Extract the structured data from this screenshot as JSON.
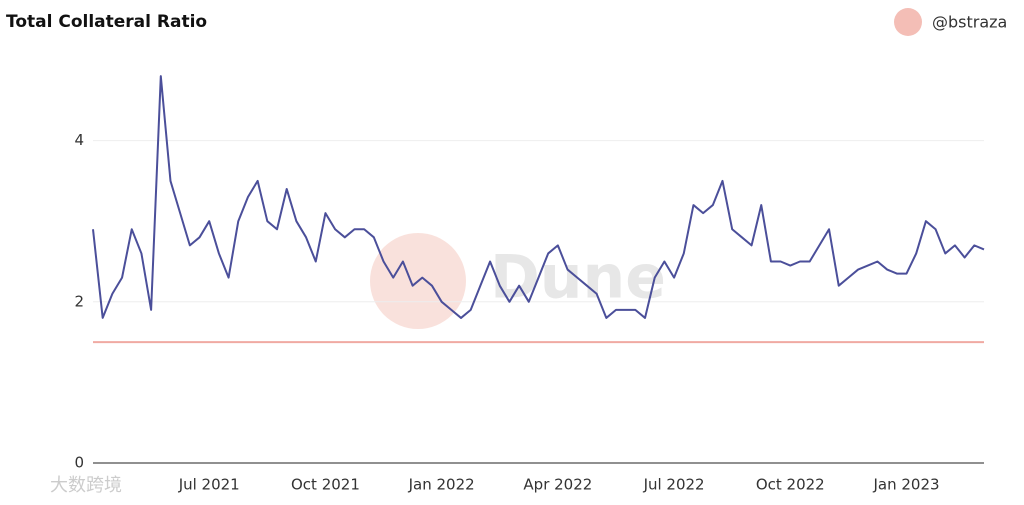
{
  "chart_data": {
    "type": "line",
    "title": "Total Collateral Ratio",
    "author": "@bstraza",
    "watermarks": [
      "Dune",
      "大数跨境"
    ],
    "x": [
      "Apr 2021",
      "Apr 2021",
      "Apr 2021",
      "Apr 2021",
      "May 2021",
      "May 2021",
      "May 2021",
      "May 2021",
      "Jun 2021",
      "Jun 2021",
      "Jun 2021",
      "Jun 2021",
      "Jul 2021",
      "Jul 2021",
      "Jul 2021",
      "Jul 2021",
      "Aug 2021",
      "Aug 2021",
      "Aug 2021",
      "Aug 2021",
      "Sep 2021",
      "Sep 2021",
      "Sep 2021",
      "Sep 2021",
      "Oct 2021",
      "Oct 2021",
      "Oct 2021",
      "Oct 2021",
      "Nov 2021",
      "Nov 2021",
      "Nov 2021",
      "Nov 2021",
      "Dec 2021",
      "Dec 2021",
      "Dec 2021",
      "Dec 2021",
      "Jan 2022",
      "Jan 2022",
      "Jan 2022",
      "Jan 2022",
      "Feb 2022",
      "Feb 2022",
      "Feb 2022",
      "Feb 2022",
      "Mar 2022",
      "Mar 2022",
      "Mar 2022",
      "Mar 2022",
      "Apr 2022",
      "Apr 2022",
      "Apr 2022",
      "Apr 2022",
      "May 2022",
      "May 2022",
      "May 2022",
      "May 2022",
      "Jun 2022",
      "Jun 2022",
      "Jun 2022",
      "Jun 2022",
      "Jul 2022",
      "Jul 2022",
      "Jul 2022",
      "Jul 2022",
      "Aug 2022",
      "Aug 2022",
      "Aug 2022",
      "Aug 2022",
      "Sep 2022",
      "Sep 2022",
      "Sep 2022",
      "Sep 2022",
      "Oct 2022",
      "Oct 2022",
      "Oct 2022",
      "Oct 2022",
      "Nov 2022",
      "Nov 2022",
      "Nov 2022",
      "Nov 2022",
      "Dec 2022",
      "Dec 2022",
      "Dec 2022",
      "Dec 2022",
      "Jan 2023",
      "Jan 2023",
      "Jan 2023",
      "Jan 2023",
      "Feb 2023",
      "Feb 2023",
      "Feb 2023",
      "Feb 2023",
      "Mar 2023"
    ],
    "series": [
      {
        "color": "#4b4f9a",
        "values": [
          2.9,
          1.8,
          2.1,
          2.3,
          2.9,
          2.6,
          1.9,
          4.8,
          3.5,
          3.1,
          2.7,
          2.8,
          3.0,
          2.6,
          2.3,
          3.0,
          3.3,
          3.5,
          3.0,
          2.9,
          3.4,
          3.0,
          2.8,
          2.5,
          3.1,
          2.9,
          2.8,
          2.9,
          2.9,
          2.8,
          2.5,
          2.3,
          2.5,
          2.2,
          2.3,
          2.2,
          2.0,
          1.9,
          1.8,
          1.9,
          2.2,
          2.5,
          2.2,
          2.0,
          2.2,
          2.0,
          2.3,
          2.6,
          2.7,
          2.4,
          2.3,
          2.2,
          2.1,
          1.8,
          1.9,
          1.9,
          1.9,
          1.8,
          2.3,
          2.5,
          2.3,
          2.6,
          3.2,
          3.1,
          3.2,
          3.5,
          2.9,
          2.8,
          2.7,
          3.2,
          2.5,
          2.5,
          2.45,
          2.5,
          2.5,
          2.7,
          2.9,
          2.2,
          2.3,
          2.4,
          2.45,
          2.5,
          2.4,
          2.35,
          2.35,
          2.6,
          3.0,
          2.9,
          2.6,
          2.7,
          2.55,
          2.7,
          2.65
        ]
      }
    ],
    "reference_line": {
      "value": 1.5,
      "color": "#f0aaa2"
    },
    "xticks": [
      "Jul 2021",
      "Oct 2021",
      "Jan 2022",
      "Apr 2022",
      "Jul 2022",
      "Oct 2022",
      "Jan 2023"
    ],
    "ylim": [
      0,
      5
    ],
    "yticks": [
      0,
      2,
      4
    ],
    "grid": true
  }
}
